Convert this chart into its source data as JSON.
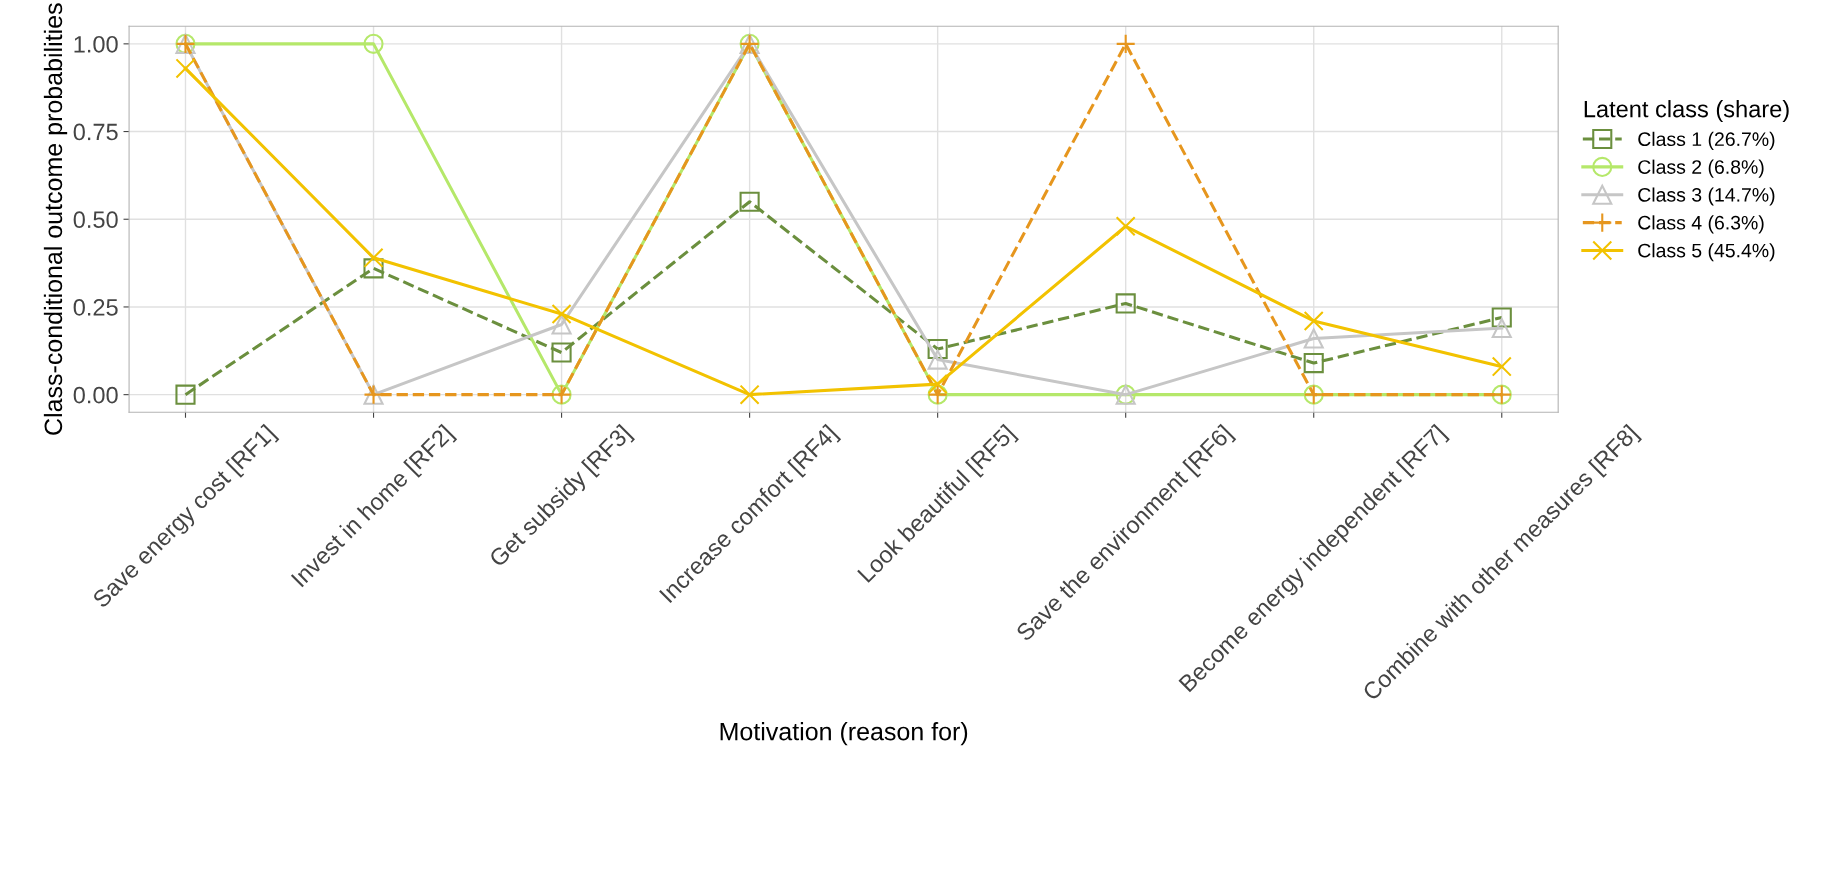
{
  "chart_data": {
    "type": "line",
    "xlabel": "Motivation (reason for)",
    "ylabel": "Class-conditional outcome probabilities",
    "legend_title": "Latent class (share)",
    "legend": "right",
    "grid": true,
    "categories": [
      "Save energy cost [RF1]",
      "Invest in home [RF2]",
      "Get subsidy [RF3]",
      "Increase comfort [RF4]",
      "Look beautiful [RF5]",
      "Save the environment [RF6]",
      "Become energy independent [RF7]",
      "Combine with other measures [RF8]"
    ],
    "ylim": [
      -0.05,
      1.05
    ],
    "yticks": [
      {
        "value": 0,
        "label": "0.00"
      },
      {
        "value": 0.25,
        "label": "0.25"
      },
      {
        "value": 0.5,
        "label": "0.50"
      },
      {
        "value": 0.75,
        "label": "0.75"
      },
      {
        "value": 1,
        "label": "1.00"
      }
    ],
    "series": [
      {
        "name": "Class 1 (26.7%)",
        "color": "#6b8f3e",
        "marker": "square",
        "line_style": "dashed",
        "values": [
          0,
          0.36,
          0.12,
          0.55,
          0.13,
          0.26,
          0.09,
          0.22
        ]
      },
      {
        "name": "Class 2 (6.8%)",
        "color": "#b5e86a",
        "marker": "circle",
        "line_style": "solid",
        "values": [
          1,
          1,
          0,
          1,
          0,
          0,
          0,
          0
        ]
      },
      {
        "name": "Class 3 (14.7%)",
        "color": "#c6c6c6",
        "marker": "triangle",
        "line_style": "solid",
        "values": [
          1,
          0,
          0.2,
          1,
          0.1,
          0,
          0.16,
          0.19
        ]
      },
      {
        "name": "Class 4 (6.3%)",
        "color": "#e6961e",
        "marker": "cross",
        "line_style": "dashed",
        "values": [
          1,
          0,
          0,
          1,
          0,
          1,
          0,
          0
        ]
      },
      {
        "name": "Class 5 (45.4%)",
        "color": "#f2c200",
        "marker": "x",
        "line_style": "solid",
        "values": [
          0.93,
          0.39,
          0.23,
          0,
          0.03,
          0.48,
          0.21,
          0.08
        ]
      }
    ]
  }
}
